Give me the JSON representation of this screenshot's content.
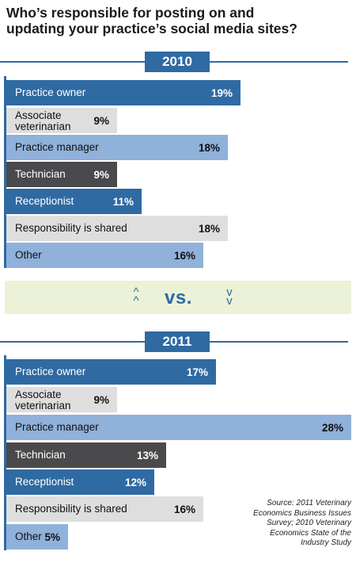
{
  "title": {
    "line1": "Who’s responsible for posting on and",
    "line2": "updating your practice’s social media sites?"
  },
  "vs_label": "vs.",
  "source": {
    "line1": "Source: 2011 Veterinary",
    "line2": "Economics Business Issues",
    "line3": "Survey; 2010 Veterinary",
    "line4": "Economics State of the",
    "line5": "Industry Study"
  },
  "colors": {
    "dark_blue": "#2f6aa3",
    "light_blue": "#8fb1da",
    "light_gray": "#dededf",
    "dark_gray": "#4a4a4c",
    "vs_band": "#ecf2d7"
  },
  "chart_data": [
    {
      "type": "bar",
      "title": "2010",
      "categories": [
        "Practice owner",
        "Associate veterinarian",
        "Practice manager",
        "Technician",
        "Receptionist",
        "Responsibility is shared",
        "Other"
      ],
      "values": [
        19,
        9,
        18,
        9,
        11,
        18,
        16
      ],
      "value_labels": [
        "19%",
        "9%",
        "18%",
        "9%",
        "11%",
        "18%",
        "16%"
      ],
      "bar_colors": [
        "dark_blue",
        "light_gray",
        "light_blue",
        "dark_gray",
        "dark_blue",
        "light_gray",
        "light_blue"
      ],
      "orientation": "horizontal",
      "xlim": [
        0,
        28
      ]
    },
    {
      "type": "bar",
      "title": "2011",
      "categories": [
        "Practice owner",
        "Associate veterinarian",
        "Practice manager",
        "Technician",
        "Receptionist",
        "Responsibility is shared",
        "Other"
      ],
      "values": [
        17,
        9,
        28,
        13,
        12,
        16,
        5
      ],
      "value_labels": [
        "17%",
        "9%",
        "28%",
        "13%",
        "12%",
        "16%",
        "5%"
      ],
      "bar_colors": [
        "dark_blue",
        "light_gray",
        "light_blue",
        "dark_gray",
        "dark_blue",
        "light_gray",
        "light_blue"
      ],
      "orientation": "horizontal",
      "xlim": [
        0,
        28
      ]
    }
  ]
}
